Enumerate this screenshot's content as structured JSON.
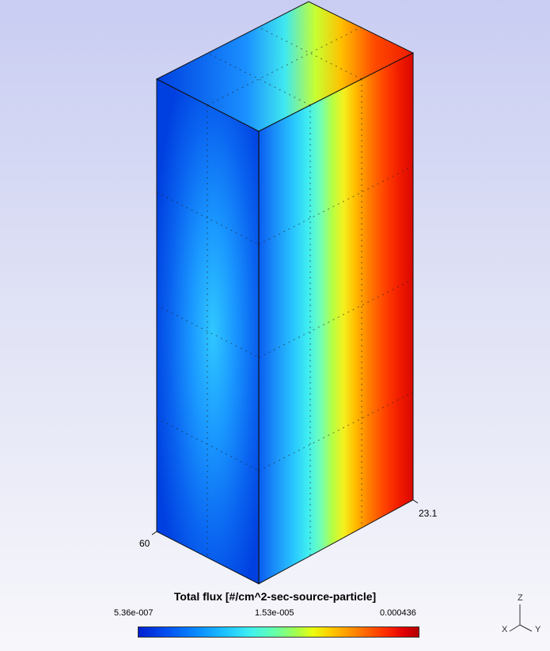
{
  "plot": {
    "axis_labels": [
      "60",
      "23.1"
    ]
  },
  "legend": {
    "title": "Total flux [#/cm^2-sec-source-particle]",
    "tick_min": "5.36e-007",
    "tick_mid": "1.53e-005",
    "tick_max": "0.000436"
  },
  "triad": {
    "z": "Z",
    "x": "X",
    "y": "Y"
  },
  "colors": {
    "low": "#0030e0",
    "mid": "#30e8ff",
    "high": "#e81800"
  }
}
